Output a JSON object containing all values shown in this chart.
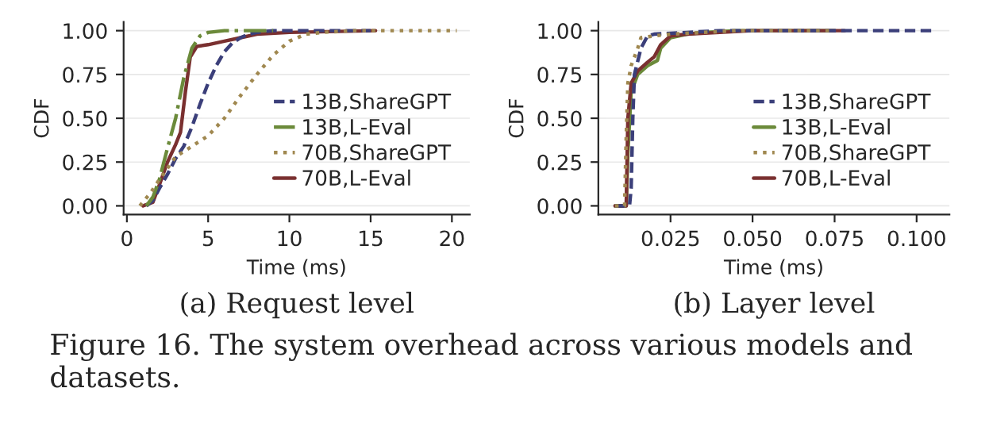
{
  "chart_data": [
    {
      "type": "line",
      "xlabel": "Time (ms)",
      "ylabel": "CDF",
      "xlim": [
        -0.2,
        21.1
      ],
      "ylim": [
        -0.05,
        1.05
      ],
      "xticks": [
        0,
        5,
        10,
        15,
        20
      ],
      "yticks": [
        {
          "value": 0,
          "label": "0.00"
        },
        {
          "value": 0.25,
          "label": "0.25"
        },
        {
          "value": 0.5,
          "label": "0.50"
        },
        {
          "value": 0.75,
          "label": "0.75"
        },
        {
          "value": 1,
          "label": "1.00"
        }
      ],
      "grid": "y",
      "legend": "right",
      "annotations": [
        "(a) Request level",
        "Figure 16. The system overhead across various models and datasets."
      ],
      "series": [
        {
          "name": "13B,ShareGPT",
          "color": "#3b3f7a",
          "line_style": "dashed",
          "x": [
            1.2,
            1.6,
            2,
            2.5,
            3,
            3.5,
            4,
            4.5,
            5,
            5.5,
            6,
            6.5,
            7,
            7.5,
            8,
            9,
            15
          ],
          "values": [
            0,
            0.03,
            0.1,
            0.18,
            0.27,
            0.34,
            0.45,
            0.58,
            0.7,
            0.8,
            0.88,
            0.93,
            0.96,
            0.98,
            0.99,
            1.0,
            1.0
          ]
        },
        {
          "name": "13B,L-Eval",
          "color": "#6b8a3a",
          "line_style": "dashdot",
          "x": [
            1.2,
            1.6,
            2,
            2.5,
            3,
            3.5,
            4,
            4.5,
            5,
            6,
            9
          ],
          "values": [
            0,
            0.05,
            0.15,
            0.33,
            0.5,
            0.73,
            0.9,
            0.97,
            0.99,
            1.0,
            1.0
          ]
        },
        {
          "name": "70B,ShareGPT",
          "color": "#a08850",
          "line_style": "dotted",
          "x": [
            0.8,
            1.5,
            2,
            3,
            4,
            5,
            6,
            7,
            8,
            9,
            10,
            11,
            12,
            14,
            20.3
          ],
          "values": [
            0,
            0.08,
            0.15,
            0.28,
            0.34,
            0.4,
            0.5,
            0.63,
            0.75,
            0.86,
            0.94,
            0.98,
            0.99,
            1.0,
            1.0
          ]
        },
        {
          "name": "70B,L-Eval",
          "color": "#7a3030",
          "line_style": "solid",
          "x": [
            1.0,
            1.6,
            2,
            2.5,
            3,
            3.3,
            3.6,
            3.9,
            4.3,
            5,
            6,
            7,
            8,
            10,
            15.3
          ],
          "values": [
            0,
            0.02,
            0.12,
            0.25,
            0.35,
            0.42,
            0.65,
            0.85,
            0.91,
            0.92,
            0.94,
            0.96,
            0.98,
            0.99,
            1.0
          ]
        }
      ]
    },
    {
      "type": "line",
      "xlabel": "Time (ms)",
      "ylabel": "CDF",
      "xlim": [
        0.003,
        0.11
      ],
      "ylim": [
        -0.05,
        1.05
      ],
      "xticks": [
        {
          "value": 0.025,
          "label": "0.025"
        },
        {
          "value": 0.05,
          "label": "0.050"
        },
        {
          "value": 0.075,
          "label": "0.075"
        },
        {
          "value": 0.1,
          "label": "0.100"
        }
      ],
      "yticks": [
        {
          "value": 0,
          "label": "0.00"
        },
        {
          "value": 0.25,
          "label": "0.25"
        },
        {
          "value": 0.5,
          "label": "0.50"
        },
        {
          "value": 0.75,
          "label": "0.75"
        },
        {
          "value": 1,
          "label": "1.00"
        }
      ],
      "grid": "y",
      "legend": "right",
      "annotations": [
        "(b) Layer level"
      ],
      "series": [
        {
          "name": "13B,ShareGPT",
          "color": "#3b3f7a",
          "line_style": "dashed",
          "x": [
            0.0081,
            0.0125,
            0.013,
            0.0135,
            0.014,
            0.016,
            0.018,
            0.02,
            0.03,
            0.04,
            0.105
          ],
          "values": [
            0,
            0,
            0.1,
            0.5,
            0.75,
            0.9,
            0.97,
            0.98,
            0.99,
            1.0,
            1.0
          ]
        },
        {
          "name": "13B,L-Eval",
          "color": "#6b8a3a",
          "line_style": "solid",
          "x": [
            0.0081,
            0.0115,
            0.012,
            0.013,
            0.015,
            0.018,
            0.021,
            0.022,
            0.025,
            0.03,
            0.035,
            0.045,
            0.075
          ],
          "values": [
            0,
            0,
            0.3,
            0.65,
            0.75,
            0.8,
            0.83,
            0.9,
            0.96,
            0.98,
            0.99,
            1.0,
            1.0
          ]
        },
        {
          "name": "70B,ShareGPT",
          "color": "#a08850",
          "line_style": "dotted",
          "x": [
            0.0081,
            0.011,
            0.0115,
            0.012,
            0.013,
            0.015,
            0.016,
            0.02,
            0.025,
            0.035,
            0.045,
            0.075
          ],
          "values": [
            0,
            0,
            0.4,
            0.7,
            0.8,
            0.9,
            0.96,
            0.97,
            0.98,
            0.99,
            1.0,
            1.0
          ]
        },
        {
          "name": "70B,L-Eval",
          "color": "#7a3030",
          "line_style": "solid",
          "x": [
            0.0081,
            0.0115,
            0.012,
            0.013,
            0.015,
            0.018,
            0.02,
            0.022,
            0.025,
            0.03,
            0.04,
            0.05,
            0.078
          ],
          "values": [
            0,
            0,
            0.5,
            0.7,
            0.77,
            0.82,
            0.85,
            0.92,
            0.97,
            0.98,
            0.99,
            1.0,
            1.0
          ]
        }
      ]
    }
  ]
}
